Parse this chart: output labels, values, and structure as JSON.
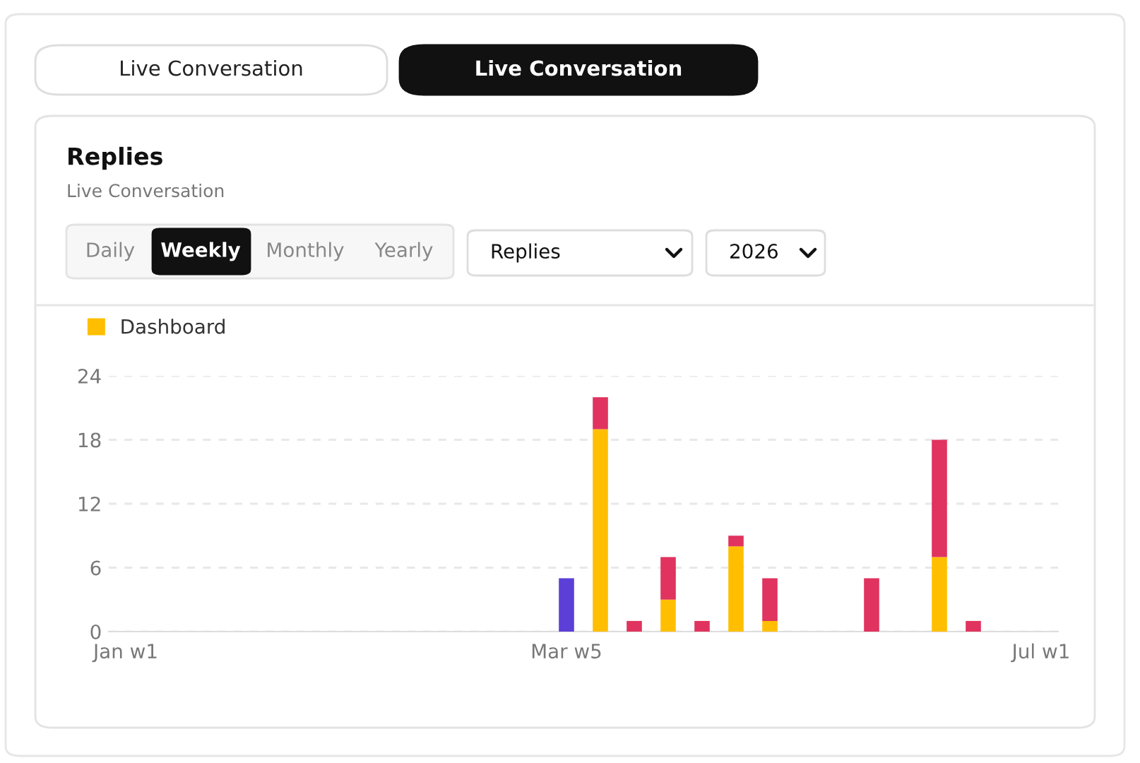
{
  "chart_data": {
    "type": "bar",
    "title": "Replies",
    "subtitle": "Live Conversation",
    "annotations": [
      "Live Conversation",
      "Live Conversation",
      "Daily",
      "Weekly",
      "Monthly",
      "Yearly",
      "Replies",
      "2026"
    ],
    "categories": [
      "Jan w1",
      null,
      null,
      null,
      null,
      null,
      null,
      null,
      null,
      null,
      null,
      null,
      null,
      "Mar w5",
      null,
      null,
      null,
      null,
      null,
      null,
      null,
      null,
      null,
      null,
      null,
      null,
      null,
      "Jul w1"
    ],
    "stacked": true,
    "series": [
      {
        "name": "Dashboard",
        "color": "#ffbf00",
        "values": [
          0,
          0,
          0,
          0,
          0,
          0,
          0,
          0,
          0,
          0,
          0,
          0,
          0,
          0,
          19,
          0,
          3,
          0,
          8,
          1,
          0,
          0,
          0,
          0,
          7,
          0,
          0,
          0
        ]
      },
      {
        "color": "#e0335f",
        "values": [
          0,
          0,
          0,
          0,
          0,
          0,
          0,
          0,
          0,
          0,
          0,
          0,
          0,
          0,
          3,
          1,
          4,
          1,
          1,
          4,
          0,
          0,
          5,
          0,
          11,
          1,
          0,
          0
        ]
      },
      {
        "color": "#5b3fd6",
        "values": [
          0,
          0,
          0,
          0,
          0,
          0,
          0,
          0,
          0,
          0,
          0,
          0,
          0,
          5,
          0,
          0,
          0,
          0,
          0,
          0,
          0,
          0,
          0,
          0,
          0,
          0,
          0,
          0
        ]
      }
    ],
    "ylim": [
      0,
      24
    ],
    "yticks": [
      0,
      6,
      12,
      18,
      24
    ],
    "grid": "y",
    "legend": "top left"
  }
}
